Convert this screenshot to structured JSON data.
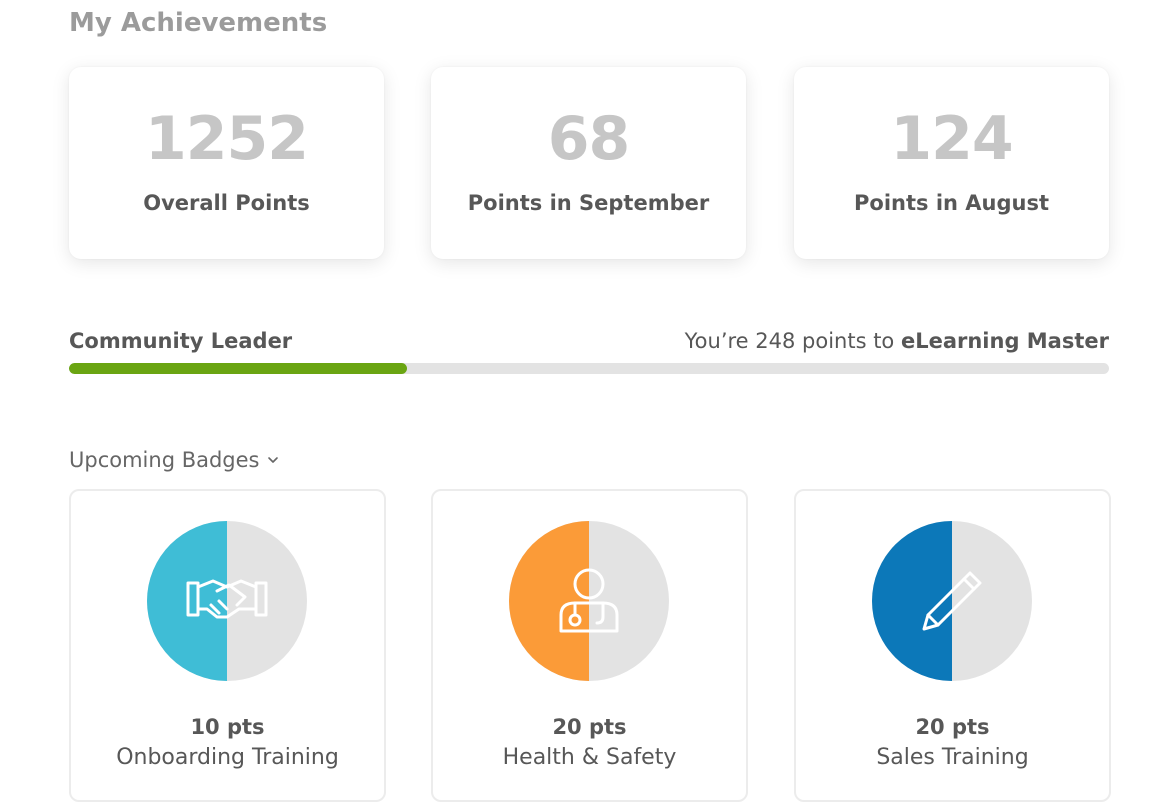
{
  "header": {
    "title": "My Achievements"
  },
  "stats": [
    {
      "value": "1252",
      "label": "Overall Points"
    },
    {
      "value": "68",
      "label": "Points in September"
    },
    {
      "value": "124",
      "label": "Points in August"
    }
  ],
  "level": {
    "current": "Community Leader",
    "next_prefix": "You’re 248 points to ",
    "next_level": "eLearning Master",
    "progress_fraction": 0.325,
    "progress_color": "#6aa512"
  },
  "badges_section": {
    "label": "Upcoming Badges",
    "icon": "chevron-down-icon"
  },
  "badges": [
    {
      "points": "10 pts",
      "name": "Onboarding Training",
      "icon": "handshake-icon",
      "color": "#3fbdd6",
      "progress_fraction": 0.5
    },
    {
      "points": "20 pts",
      "name": "Health & Safety",
      "icon": "doctor-icon",
      "color": "#fb9b38",
      "progress_fraction": 0.5
    },
    {
      "points": "20 pts",
      "name": "Sales Training",
      "icon": "pencil-icon",
      "color": "#0c78b9",
      "progress_fraction": 0.5
    }
  ]
}
